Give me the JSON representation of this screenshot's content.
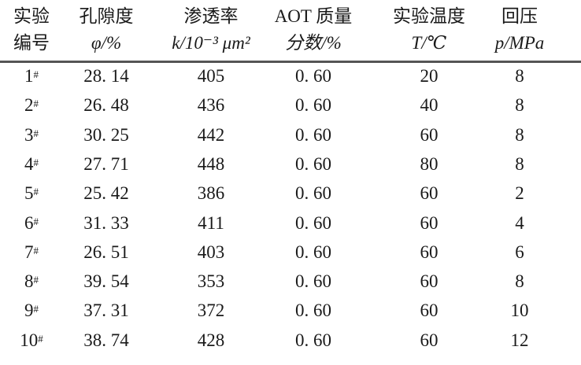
{
  "table": {
    "headers": [
      {
        "line1": "实验",
        "line2": "编号"
      },
      {
        "line1": "孔隙度",
        "line2": "φ/%"
      },
      {
        "line1": "渗透率",
        "line2": "k/10⁻³ μm²"
      },
      {
        "line1": "AOT 质量",
        "line2": "分数/%"
      },
      {
        "line1": "实验温度",
        "line2": "T/℃"
      },
      {
        "line1": "回压",
        "line2": "p/MPa"
      }
    ],
    "rows": [
      [
        "1",
        "28. 14",
        "405",
        "0. 60",
        "20",
        "8"
      ],
      [
        "2",
        "26. 48",
        "436",
        "0. 60",
        "40",
        "8"
      ],
      [
        "3",
        "30. 25",
        "442",
        "0. 60",
        "60",
        "8"
      ],
      [
        "4",
        "27. 71",
        "448",
        "0. 60",
        "80",
        "8"
      ],
      [
        "5",
        "25. 42",
        "386",
        "0. 60",
        "60",
        "2"
      ],
      [
        "6",
        "31. 33",
        "411",
        "0. 60",
        "60",
        "4"
      ],
      [
        "7",
        "26. 51",
        "403",
        "0. 60",
        "60",
        "6"
      ],
      [
        "8",
        "39. 54",
        "353",
        "0. 60",
        "60",
        "8"
      ],
      [
        "9",
        "37. 31",
        "372",
        "0. 60",
        "60",
        "10"
      ],
      [
        "10",
        "38. 74",
        "428",
        "0. 60",
        "60",
        "12"
      ]
    ],
    "id_suffix": "#"
  }
}
